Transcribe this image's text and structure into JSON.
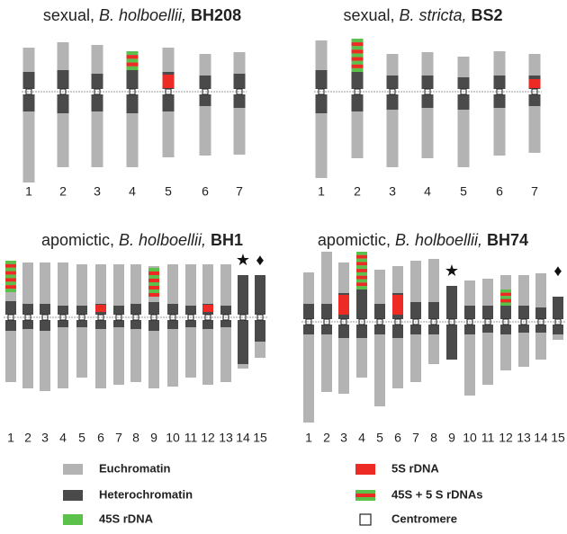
{
  "panels": [
    {
      "title": {
        "mode": "sexual, ",
        "species": "B. holboellii,",
        "accession": "BH208"
      },
      "chromosomes": [
        "1",
        "2",
        "3",
        "4",
        "5",
        "6",
        "7"
      ],
      "symbols": []
    },
    {
      "title": {
        "mode": "sexual, ",
        "species": "B. stricta,",
        "accession": "BS2"
      },
      "chromosomes": [
        "1",
        "2",
        "3",
        "4",
        "5",
        "6",
        "7"
      ],
      "symbols": []
    },
    {
      "title": {
        "mode": "apomictic, ",
        "species": "B. holboellii,",
        "accession": "BH1"
      },
      "chromosomes": [
        "1",
        "2",
        "3",
        "4",
        "5",
        "6",
        "7",
        "8",
        "9",
        "10",
        "11",
        "12",
        "13",
        "14",
        "15"
      ],
      "symbols": [
        "★",
        "♦"
      ]
    },
    {
      "title": {
        "mode": "apomictic, ",
        "species": "B. holboellii,",
        "accession": "BH74"
      },
      "chromosomes": [
        "1",
        "2",
        "3",
        "4",
        "5",
        "6",
        "7",
        "8",
        "9",
        "10",
        "11",
        "12",
        "13",
        "14",
        "15"
      ],
      "symbols": [
        "★",
        "♦"
      ]
    }
  ],
  "legend": [
    "Euchromatin",
    "Heterochromatin",
    "45S rDNA",
    "5S rDNA",
    "45S + 5 S rDNAs",
    "Centromere"
  ]
}
